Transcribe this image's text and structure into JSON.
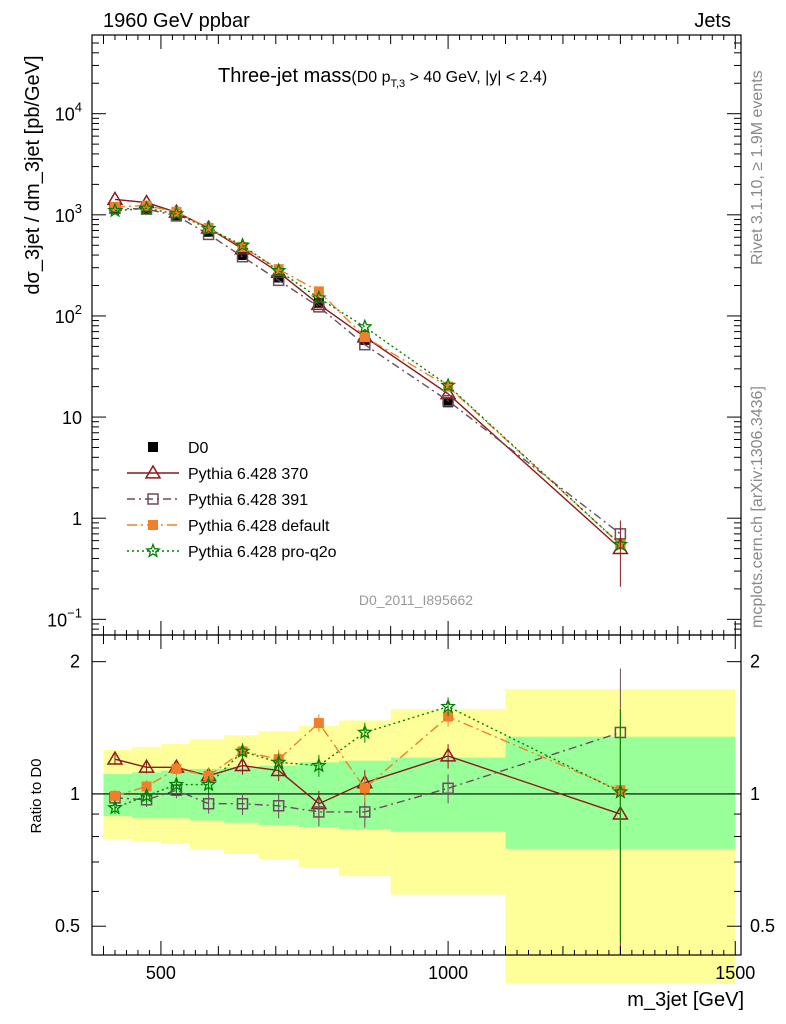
{
  "header": {
    "left": "1960 GeV ppbar",
    "right": "Jets",
    "side_rivet": "Rivet 3.1.10, ≥ 1.9M events",
    "side_mcplots": "mcplots.cern.ch [arXiv:1306.3436]"
  },
  "chart_data": {
    "type": "line",
    "title_main": "Three-jet mass",
    "title_cut": "(D0 p",
    "title_sub": "T,3",
    "title_rest": " > 40 GeV, |y| < 2.4)",
    "watermark": "D0_2011_I895662",
    "xlabel": "m_3jet [GeV]",
    "ylabel": "dσ_3jet / dm_3jet [pb/GeV]",
    "ratio_ylabel": "Ratio to D0",
    "xlim": [
      380,
      1510
    ],
    "ylim": [
      0.07,
      60000
    ],
    "ratio_ylim": [
      0.43,
      2.3
    ],
    "y_scale": "log",
    "x_ticks": [
      500,
      1000,
      1500
    ],
    "y_ticks": [
      {
        "value": 10000,
        "base": "10",
        "exp": "4"
      },
      {
        "value": 1000,
        "base": "10",
        "exp": "3"
      },
      {
        "value": 100,
        "base": "10",
        "exp": "2"
      },
      {
        "value": 10,
        "base": "10",
        "exp": ""
      },
      {
        "value": 1,
        "base": "1",
        "exp": ""
      },
      {
        "value": 0.1,
        "base": "10",
        "exp": "−1"
      }
    ],
    "ratio_ticks": [
      {
        "value": 0.5,
        "label": "0.5"
      },
      {
        "value": 1,
        "label": "1"
      },
      {
        "value": 2,
        "label": "2"
      }
    ],
    "x": [
      420,
      475,
      527,
      583,
      642,
      705,
      775,
      855,
      1000,
      1300
    ],
    "bin_edges": [
      400,
      450,
      500,
      550,
      610,
      670,
      740,
      810,
      900,
      1100,
      1500
    ],
    "data": {
      "name": "D0",
      "values": [
        1180,
        1150,
        960,
        680,
        400,
        240,
        135,
        58,
        14,
        0.55
      ],
      "band_inner": [
        [
          0.89,
          1.11
        ],
        [
          0.88,
          1.12
        ],
        [
          0.88,
          1.13
        ],
        [
          0.87,
          1.14
        ],
        [
          0.86,
          1.15
        ],
        [
          0.85,
          1.16
        ],
        [
          0.84,
          1.18
        ],
        [
          0.83,
          1.19
        ],
        [
          0.82,
          1.21
        ],
        [
          0.75,
          1.35
        ]
      ],
      "band_outer": [
        [
          0.79,
          1.26
        ],
        [
          0.78,
          1.28
        ],
        [
          0.77,
          1.3
        ],
        [
          0.75,
          1.33
        ],
        [
          0.73,
          1.36
        ],
        [
          0.71,
          1.39
        ],
        [
          0.68,
          1.43
        ],
        [
          0.65,
          1.47
        ],
        [
          0.59,
          1.56
        ],
        [
          0.37,
          1.73
        ]
      ]
    },
    "series": [
      {
        "name": "Pythia 6.428 370",
        "color": "#8b1a1a",
        "marker": "triangle",
        "dash": "",
        "values": [
          1420,
          1320,
          1060,
          740,
          460,
          270,
          130,
          62,
          17,
          0.5
        ],
        "ratio": [
          1.2,
          1.15,
          1.15,
          1.1,
          1.16,
          1.13,
          0.95,
          1.06,
          1.22,
          0.9
        ]
      },
      {
        "name": "Pythia 6.428 391",
        "color": "#6b4c5c",
        "marker": "square",
        "dash": "8,4,2,4",
        "values": [
          1160,
          1140,
          980,
          640,
          385,
          225,
          123,
          52,
          14.5,
          0.7
        ],
        "ratio": [
          0.98,
          0.97,
          1.02,
          0.95,
          0.95,
          0.94,
          0.91,
          0.91,
          1.03,
          1.38
        ]
      },
      {
        "name": "Pythia 6.428 default",
        "color": "#f07f2a",
        "marker": "fsquare",
        "dash": "10,4,2,4",
        "values": [
          1200,
          1230,
          1070,
          740,
          480,
          290,
          175,
          62,
          20,
          0.55
        ],
        "ratio": [
          0.99,
          1.04,
          1.14,
          1.1,
          1.25,
          1.2,
          1.45,
          1.03,
          1.5,
          1.02
        ]
      },
      {
        "name": "Pythia 6.428 pro-q2o",
        "color": "#008000",
        "marker": "star",
        "dash": "2,3",
        "values": [
          1100,
          1160,
          1020,
          730,
          500,
          280,
          150,
          78,
          20.5,
          0.55
        ],
        "ratio": [
          0.93,
          0.99,
          1.05,
          1.05,
          1.25,
          1.18,
          1.16,
          1.38,
          1.58,
          1.01
        ]
      }
    ]
  }
}
